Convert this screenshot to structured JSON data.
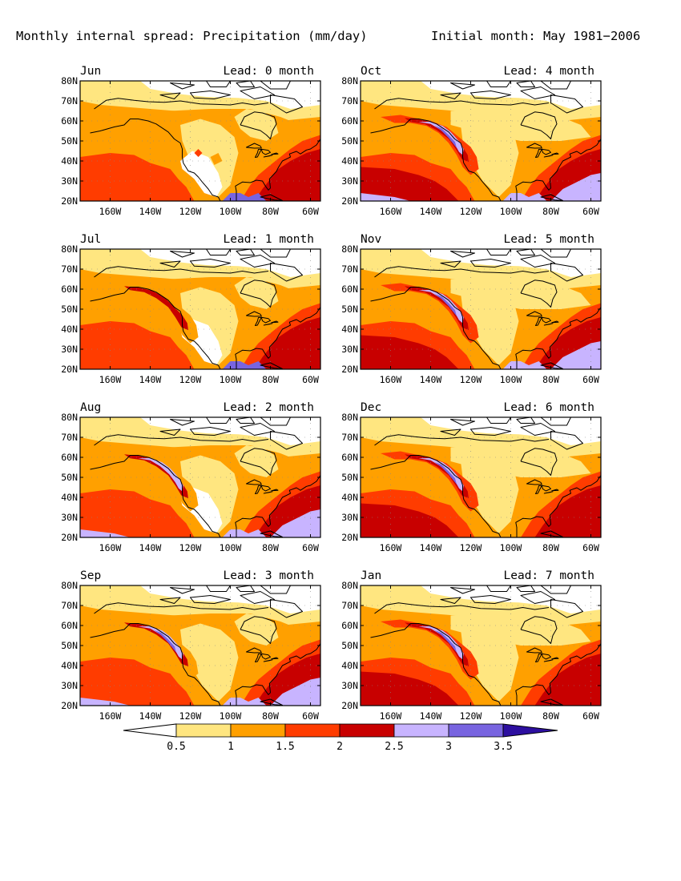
{
  "figure": {
    "title": "Monthly internal spread: Precipitation (mm/day)",
    "initial_month": "Initial month: May 1981−2006"
  },
  "axes": {
    "lat_ticks": [
      "80N",
      "70N",
      "60N",
      "50N",
      "40N",
      "30N",
      "20N"
    ],
    "lon_ticks": [
      "160W",
      "140W",
      "120W",
      "100W",
      "80W",
      "60W"
    ]
  },
  "panels": [
    {
      "month": "Jun",
      "lead": "Lead: 0 month"
    },
    {
      "month": "Oct",
      "lead": "Lead: 4 month"
    },
    {
      "month": "Jul",
      "lead": "Lead: 1 month"
    },
    {
      "month": "Nov",
      "lead": "Lead: 5 month"
    },
    {
      "month": "Aug",
      "lead": "Lead: 2 month"
    },
    {
      "month": "Dec",
      "lead": "Lead: 6 month"
    },
    {
      "month": "Sep",
      "lead": "Lead: 3 month"
    },
    {
      "month": "Jan",
      "lead": "Lead: 7 month"
    }
  ],
  "colorbar": {
    "labels": [
      "0.5",
      "1",
      "1.5",
      "2",
      "2.5",
      "3",
      "3.5"
    ],
    "colors": [
      "#ffffff",
      "#ffe680",
      "#ffa000",
      "#ff3c00",
      "#c80000",
      "#c8b4ff",
      "#7864e0",
      "#2d0fa0"
    ]
  }
}
